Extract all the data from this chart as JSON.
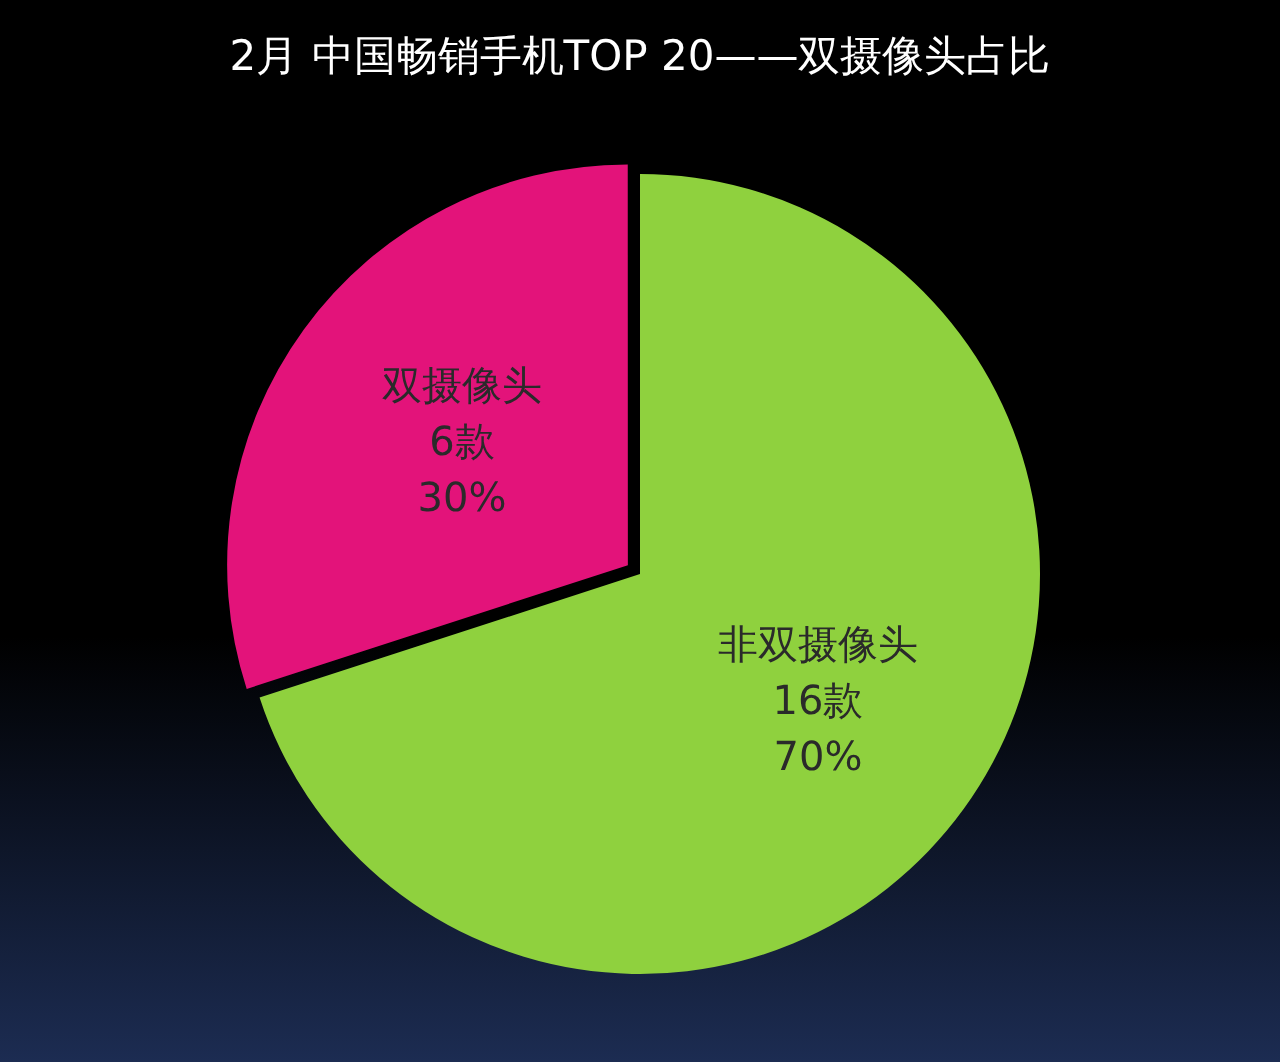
{
  "chart_data": {
    "type": "pie",
    "title": "2月 中国畅销手机TOP 20——双摄像头占比",
    "categories": [
      "双摄像头 6款",
      "非双摄像头 16款"
    ],
    "values": [
      30,
      70
    ],
    "value_labels": [
      "30%",
      "70%"
    ],
    "colors": [
      "#e3137a",
      "#8fd13e"
    ],
    "legend": false
  }
}
